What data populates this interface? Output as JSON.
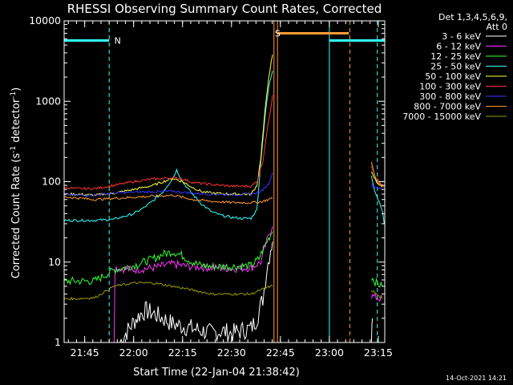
{
  "chart_data": {
    "type": "line",
    "title": "RHESSI Observing Summary Count Rates, Corrected",
    "xlabel": "Start Time (22-Jan-04 21:38:42)",
    "ylabel_main": "Corrected Count Rate (s",
    "ylabel_sup1": "-1",
    "ylabel_mid": " detector",
    "ylabel_sup2": "-1",
    "ylabel_end": ")",
    "y_scale": "log",
    "ylim": [
      1,
      10000
    ],
    "xlim": [
      21.645,
      23.283
    ],
    "y_ticks": [
      {
        "value": 1,
        "label": "1"
      },
      {
        "value": 10,
        "label": "10"
      },
      {
        "value": 100,
        "label": "100"
      },
      {
        "value": 1000,
        "label": "1000"
      },
      {
        "value": 10000,
        "label": "10000"
      }
    ],
    "x_ticks": [
      {
        "value": 21.75,
        "label": "21:45"
      },
      {
        "value": 22.0,
        "label": "22:00"
      },
      {
        "value": 22.25,
        "label": "22:15"
      },
      {
        "value": 22.5,
        "label": "22:30"
      },
      {
        "value": 22.75,
        "label": "22:45"
      },
      {
        "value": 23.0,
        "label": "23:00"
      },
      {
        "value": 23.25,
        "label": "23:15"
      }
    ],
    "legend_header": [
      "Det 1,3,4,5,6,9,",
      "Att 0"
    ],
    "legend_placement": "right",
    "footer_date": "14-Oct-2021 14:21",
    "series": [
      {
        "name": "3 - 6 keV",
        "color": "#ffffff",
        "segments": [
          [
            [
              21.93,
              1.0
            ],
            [
              21.96,
              1.3
            ],
            [
              22.0,
              1.8
            ],
            [
              22.03,
              2.2
            ],
            [
              22.06,
              2.5
            ],
            [
              22.1,
              2.3
            ],
            [
              22.15,
              2.0
            ],
            [
              22.2,
              1.7
            ],
            [
              22.25,
              1.6
            ],
            [
              22.3,
              1.5
            ],
            [
              22.35,
              1.4
            ],
            [
              22.4,
              1.3
            ],
            [
              22.45,
              1.4
            ],
            [
              22.5,
              1.3
            ],
            [
              22.55,
              1.4
            ],
            [
              22.6,
              1.5
            ],
            [
              22.63,
              2.0
            ],
            [
              22.66,
              3.5
            ],
            [
              22.68,
              8.0
            ],
            [
              22.7,
              15.0
            ],
            [
              22.71,
              18.0
            ]
          ],
          [
            [
              23.215,
              1.0
            ],
            [
              23.22,
              2.0
            ]
          ]
        ]
      },
      {
        "name": "6 - 12 keV",
        "color": "#ff33ff",
        "segments": [
          [
            [
              21.9,
              1.0
            ],
            [
              21.905,
              8.5
            ],
            [
              22.0,
              8.0
            ],
            [
              22.1,
              8.5
            ],
            [
              22.15,
              9.0
            ],
            [
              22.2,
              9.5
            ],
            [
              22.25,
              9.0
            ],
            [
              22.3,
              8.8
            ],
            [
              22.4,
              8.5
            ],
            [
              22.5,
              8.3
            ],
            [
              22.6,
              8.5
            ],
            [
              22.65,
              10.0
            ],
            [
              22.68,
              18.0
            ],
            [
              22.7,
              25.0
            ],
            [
              22.71,
              28.0
            ]
          ],
          [
            [
              23.215,
              3.8
            ],
            [
              23.24,
              3.6
            ],
            [
              23.27,
              3.5
            ]
          ]
        ]
      },
      {
        "name": "12 - 25 keV",
        "color": "#33ff33",
        "segments": [
          [
            [
              21.645,
              5.8
            ],
            [
              21.7,
              5.8
            ],
            [
              21.8,
              5.8
            ],
            [
              21.9,
              8.0
            ],
            [
              22.0,
              9.0
            ],
            [
              22.05,
              10.0
            ],
            [
              22.1,
              11.0
            ],
            [
              22.15,
              12.5
            ],
            [
              22.2,
              13.5
            ],
            [
              22.25,
              12.0
            ],
            [
              22.3,
              10.0
            ],
            [
              22.35,
              9.0
            ],
            [
              22.4,
              8.8
            ],
            [
              22.5,
              8.8
            ],
            [
              22.6,
              9.0
            ],
            [
              22.64,
              11.0
            ],
            [
              22.67,
              16.0
            ],
            [
              22.7,
              22.0
            ],
            [
              22.71,
              24.0
            ]
          ],
          [
            [
              23.215,
              6.5
            ],
            [
              23.24,
              5.5
            ],
            [
              23.27,
              5.0
            ]
          ]
        ]
      },
      {
        "name": "25 - 50 keV",
        "color": "#33ffff",
        "segments": [
          [
            [
              21.645,
              33.0
            ],
            [
              21.7,
              33.0
            ],
            [
              21.8,
              33.0
            ],
            [
              21.9,
              34.0
            ],
            [
              22.0,
              40.0
            ],
            [
              22.05,
              47.0
            ],
            [
              22.1,
              58.0
            ],
            [
              22.15,
              75.0
            ],
            [
              22.2,
              110.0
            ],
            [
              22.22,
              140.0
            ],
            [
              22.25,
              100.0
            ],
            [
              22.3,
              70.0
            ],
            [
              22.35,
              52.0
            ],
            [
              22.4,
              42.0
            ],
            [
              22.45,
              38.0
            ],
            [
              22.5,
              36.0
            ],
            [
              22.55,
              35.0
            ],
            [
              22.6,
              35.0
            ],
            [
              22.63,
              45.0
            ],
            [
              22.65,
              180.0
            ],
            [
              22.67,
              600.0
            ],
            [
              22.69,
              1500.0
            ],
            [
              22.71,
              2400.0
            ]
          ],
          [
            [
              23.215,
              120.0
            ],
            [
              23.23,
              80.0
            ],
            [
              23.25,
              60.0
            ],
            [
              23.27,
              45.0
            ],
            [
              23.28,
              30.0
            ]
          ]
        ]
      },
      {
        "name": "50 - 100 keV",
        "color": "#ffff33",
        "segments": [
          [
            [
              21.645,
              70.0
            ],
            [
              21.7,
              70.0
            ],
            [
              21.8,
              68.0
            ],
            [
              21.9,
              72.0
            ],
            [
              22.0,
              80.0
            ],
            [
              22.1,
              90.0
            ],
            [
              22.15,
              100.0
            ],
            [
              22.2,
              110.0
            ],
            [
              22.25,
              100.0
            ],
            [
              22.3,
              85.0
            ],
            [
              22.35,
              75.0
            ],
            [
              22.4,
              72.0
            ],
            [
              22.5,
              70.0
            ],
            [
              22.6,
              70.0
            ],
            [
              22.63,
              90.0
            ],
            [
              22.65,
              200.0
            ],
            [
              22.67,
              700.0
            ],
            [
              22.69,
              2000.0
            ],
            [
              22.71,
              3800.0
            ]
          ],
          [
            [
              23.215,
              130.0
            ],
            [
              23.24,
              100.0
            ],
            [
              23.27,
              85.0
            ]
          ]
        ]
      },
      {
        "name": "100 - 300 keV",
        "color": "#ff3333",
        "segments": [
          [
            [
              21.645,
              85.0
            ],
            [
              21.7,
              82.0
            ],
            [
              21.8,
              82.0
            ],
            [
              21.9,
              90.0
            ],
            [
              22.0,
              100.0
            ],
            [
              22.1,
              108.0
            ],
            [
              22.2,
              112.0
            ],
            [
              22.25,
              108.0
            ],
            [
              22.3,
              98.0
            ],
            [
              22.4,
              92.0
            ],
            [
              22.5,
              88.0
            ],
            [
              22.6,
              88.0
            ],
            [
              22.63,
              100.0
            ],
            [
              22.66,
              180.0
            ],
            [
              22.68,
              400.0
            ],
            [
              22.7,
              800.0
            ],
            [
              22.71,
              1200.0
            ]
          ],
          [
            [
              23.215,
              160.0
            ],
            [
              23.24,
              110.0
            ],
            [
              23.27,
              90.0
            ],
            [
              23.28,
              85.0
            ]
          ]
        ]
      },
      {
        "name": "300 - 800 keV",
        "color": "#3333ff",
        "segments": [
          [
            [
              21.645,
              70.0
            ],
            [
              21.7,
              68.0
            ],
            [
              21.8,
              68.0
            ],
            [
              21.9,
              72.0
            ],
            [
              22.0,
              74.0
            ],
            [
              22.1,
              75.0
            ],
            [
              22.2,
              76.0
            ],
            [
              22.25,
              74.0
            ],
            [
              22.3,
              72.0
            ],
            [
              22.4,
              70.0
            ],
            [
              22.5,
              69.0
            ],
            [
              22.6,
              70.0
            ],
            [
              22.65,
              75.0
            ],
            [
              22.69,
              95.0
            ],
            [
              22.71,
              130.0
            ]
          ],
          [
            [
              23.215,
              90.0
            ],
            [
              23.24,
              85.0
            ],
            [
              23.27,
              80.0
            ]
          ]
        ]
      },
      {
        "name": "800 - 7000 keV",
        "color": "#ff9933",
        "segments": [
          [
            [
              21.645,
              65.0
            ],
            [
              21.7,
              63.0
            ],
            [
              21.8,
              60.0
            ],
            [
              21.9,
              62.0
            ],
            [
              22.0,
              64.0
            ],
            [
              22.1,
              66.0
            ],
            [
              22.2,
              68.0
            ],
            [
              22.25,
              64.0
            ],
            [
              22.3,
              60.0
            ],
            [
              22.4,
              57.0
            ],
            [
              22.5,
              55.0
            ],
            [
              22.6,
              55.0
            ],
            [
              22.65,
              56.0
            ],
            [
              22.69,
              60.0
            ],
            [
              22.71,
              62.0
            ]
          ],
          [
            [
              23.215,
              180.0
            ],
            [
              23.23,
              120.0
            ],
            [
              23.25,
              95.0
            ],
            [
              23.27,
              88.0
            ]
          ]
        ]
      },
      {
        "name": "7000 - 15000 keV",
        "color": "#999900",
        "segments": [
          [
            [
              21.645,
              3.5
            ],
            [
              21.7,
              3.5
            ],
            [
              21.8,
              3.6
            ],
            [
              21.9,
              5.0
            ],
            [
              22.0,
              5.5
            ],
            [
              22.1,
              5.5
            ],
            [
              22.2,
              5.0
            ],
            [
              22.3,
              4.5
            ],
            [
              22.4,
              4.0
            ],
            [
              22.5,
              4.0
            ],
            [
              22.6,
              4.0
            ],
            [
              22.65,
              4.5
            ],
            [
              22.7,
              5.0
            ],
            [
              22.71,
              5.0
            ]
          ],
          [
            [
              23.215,
              4.5
            ],
            [
              23.24,
              4.0
            ],
            [
              23.27,
              3.5
            ]
          ]
        ]
      }
    ],
    "annotations": [
      {
        "label": "N",
        "color": "#33ffff",
        "bar": [
          21.645,
          21.875
        ],
        "y": 5700,
        "label_x": 21.885
      },
      {
        "label": "S",
        "color": "#ff9933",
        "bar": [
          22.735,
          23.1
        ],
        "y": 7000,
        "label_x": 22.705
      },
      {
        "label": "",
        "color": "#33ffff",
        "bar": [
          23.0,
          23.283
        ],
        "y": 5700,
        "label_x": 23.0
      }
    ],
    "vlines": [
      {
        "x": 21.645,
        "color": "#33ffff",
        "style": "solid"
      },
      {
        "x": 21.875,
        "color": "#33ffff",
        "style": "dashed"
      },
      {
        "x": 22.717,
        "color": "#ff9933",
        "style": "solid"
      },
      {
        "x": 22.735,
        "color": "#ff9933",
        "style": "solid"
      },
      {
        "x": 23.0,
        "color": "#33ffff",
        "style": "solid"
      },
      {
        "x": 23.105,
        "color": "#ff9933",
        "style": "dashed"
      },
      {
        "x": 23.245,
        "color": "#33ffff",
        "style": "dashed"
      }
    ]
  }
}
